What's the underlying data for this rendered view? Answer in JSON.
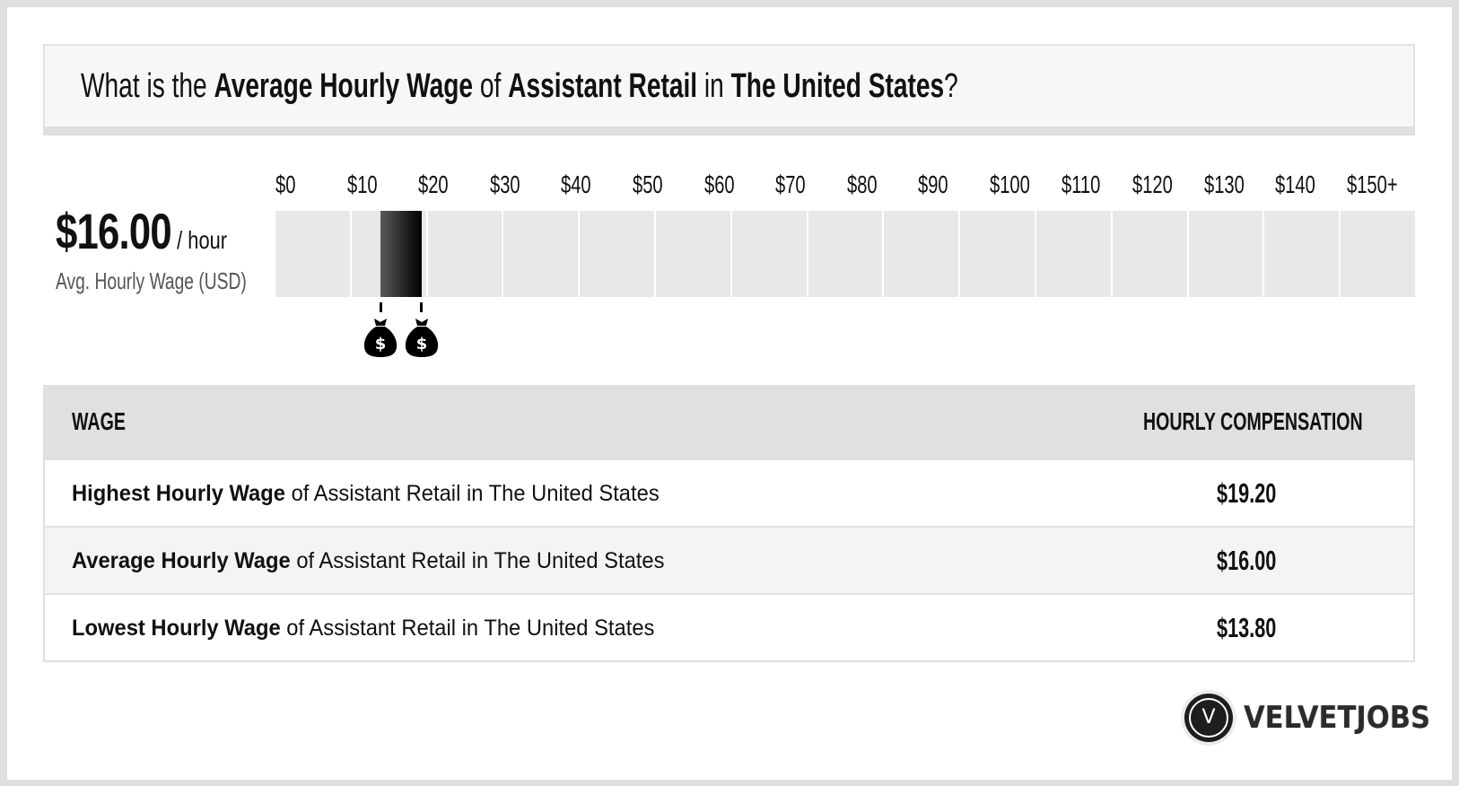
{
  "title": {
    "parts": [
      {
        "text": "What is the ",
        "bold": false
      },
      {
        "text": "Average Hourly Wage",
        "bold": true
      },
      {
        "text": " of ",
        "bold": false
      },
      {
        "text": "Assistant Retail",
        "bold": true
      },
      {
        "text": " in ",
        "bold": false
      },
      {
        "text": "The United States",
        "bold": true
      },
      {
        "text": "?",
        "bold": false
      }
    ]
  },
  "summary": {
    "value": "$16.00",
    "unit": "/ hour",
    "label": "Avg. Hourly Wage (USD)"
  },
  "axis": {
    "ticks": [
      "$0",
      "$10",
      "$20",
      "$30",
      "$40",
      "$50",
      "$60",
      "$70",
      "$80",
      "$90",
      "$100",
      "$110",
      "$120",
      "$130",
      "$140",
      "$150+"
    ]
  },
  "table": {
    "headers": {
      "wage": "WAGE",
      "compensation": "HOURLY COMPENSATION"
    },
    "rows": [
      {
        "bold": "Highest Hourly Wage",
        "rest": " of Assistant Retail in The United States",
        "value": "$19.20"
      },
      {
        "bold": "Average Hourly Wage",
        "rest": " of Assistant Retail in The United States",
        "value": "$16.00"
      },
      {
        "bold": "Lowest Hourly Wage",
        "rest": " of Assistant Retail in The United States",
        "value": "$13.80"
      }
    ]
  },
  "logo": {
    "letter": "V",
    "text": "VELVETJOBS"
  },
  "icons": {
    "range_markers": "money-bag-icon"
  },
  "colors": {
    "track": "#e8e8e8",
    "bar_start": "#5a5a5a",
    "bar_end": "#000000",
    "header_bg": "#e0e0e0",
    "alt_row": "#f4f4f4",
    "frame": "#dfdfdf"
  },
  "chart_data": {
    "type": "bar",
    "title": "What is the Average Hourly Wage of Assistant Retail in The United States?",
    "orientation": "horizontal-range",
    "xlabel": "Hourly wage (USD)",
    "xlim": [
      0,
      150
    ],
    "x_ticks": [
      "$0",
      "$10",
      "$20",
      "$30",
      "$40",
      "$50",
      "$60",
      "$70",
      "$80",
      "$90",
      "$100",
      "$110",
      "$120",
      "$130",
      "$140",
      "$150+"
    ],
    "range": {
      "low": 13.8,
      "high": 19.2,
      "average": 16.0
    },
    "categories": [
      "Highest Hourly Wage",
      "Average Hourly Wage",
      "Lowest Hourly Wage"
    ],
    "values": [
      19.2,
      16.0,
      13.8
    ],
    "grid": false,
    "legend": "none"
  }
}
